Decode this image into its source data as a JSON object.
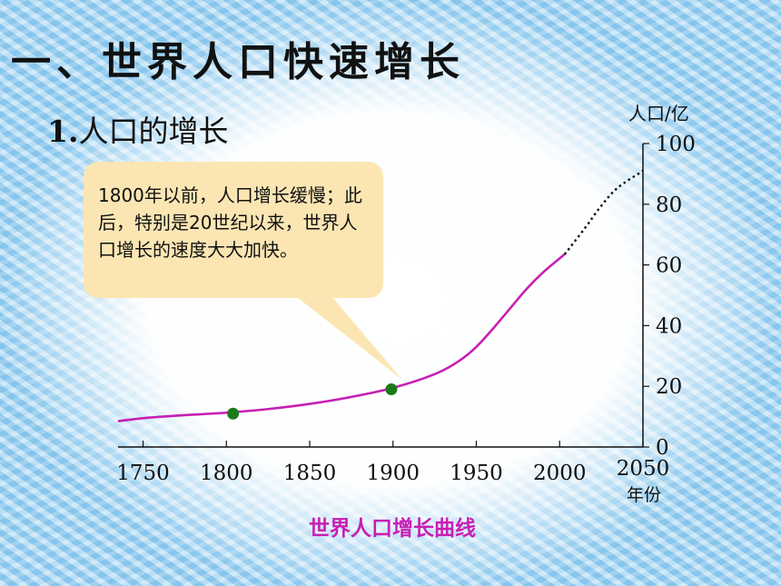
{
  "slide": {
    "main_title": "一、世界人口快速增长",
    "subtitle_num": "1.",
    "subtitle_text": "人口的增长",
    "callout": "1800年以前，人口增长缓慢；此后，特别是20世纪以来，世界人口增长的速度大大加快。"
  },
  "chart_data": {
    "type": "line",
    "title": "世界人口增长曲线",
    "xlabel": "年份",
    "ylabel": "人口/亿",
    "x_ticks": [
      "1750",
      "1800",
      "1850",
      "1900",
      "1950",
      "2000",
      "2050"
    ],
    "y_ticks": [
      "0",
      "20",
      "40",
      "60",
      "80",
      "100"
    ],
    "xlim": [
      1735,
      2050
    ],
    "ylim": [
      0,
      100
    ],
    "series": [
      {
        "style": "solid",
        "color": "#c71fb4",
        "x": [
          1735,
          1750,
          1775,
          1800,
          1825,
          1850,
          1875,
          1900,
          1925,
          1940,
          1950,
          1960,
          1970,
          1980,
          1990,
          2003
        ],
        "y": [
          8.5,
          9.5,
          10.5,
          11.3,
          12.5,
          14.2,
          16.5,
          19.5,
          24.0,
          28.5,
          33.0,
          39.0,
          45.5,
          52.0,
          57.5,
          63.5
        ]
      },
      {
        "style": "dotted",
        "color": "#111111",
        "x": [
          2003,
          2015,
          2025,
          2035,
          2050
        ],
        "y": [
          63.5,
          72.0,
          79.5,
          85.5,
          91.0
        ]
      }
    ],
    "markers": [
      {
        "x": 1804,
        "y": 11,
        "color": "#1a7a1a"
      },
      {
        "x": 1899,
        "y": 19,
        "color": "#1a7a1a"
      }
    ]
  }
}
